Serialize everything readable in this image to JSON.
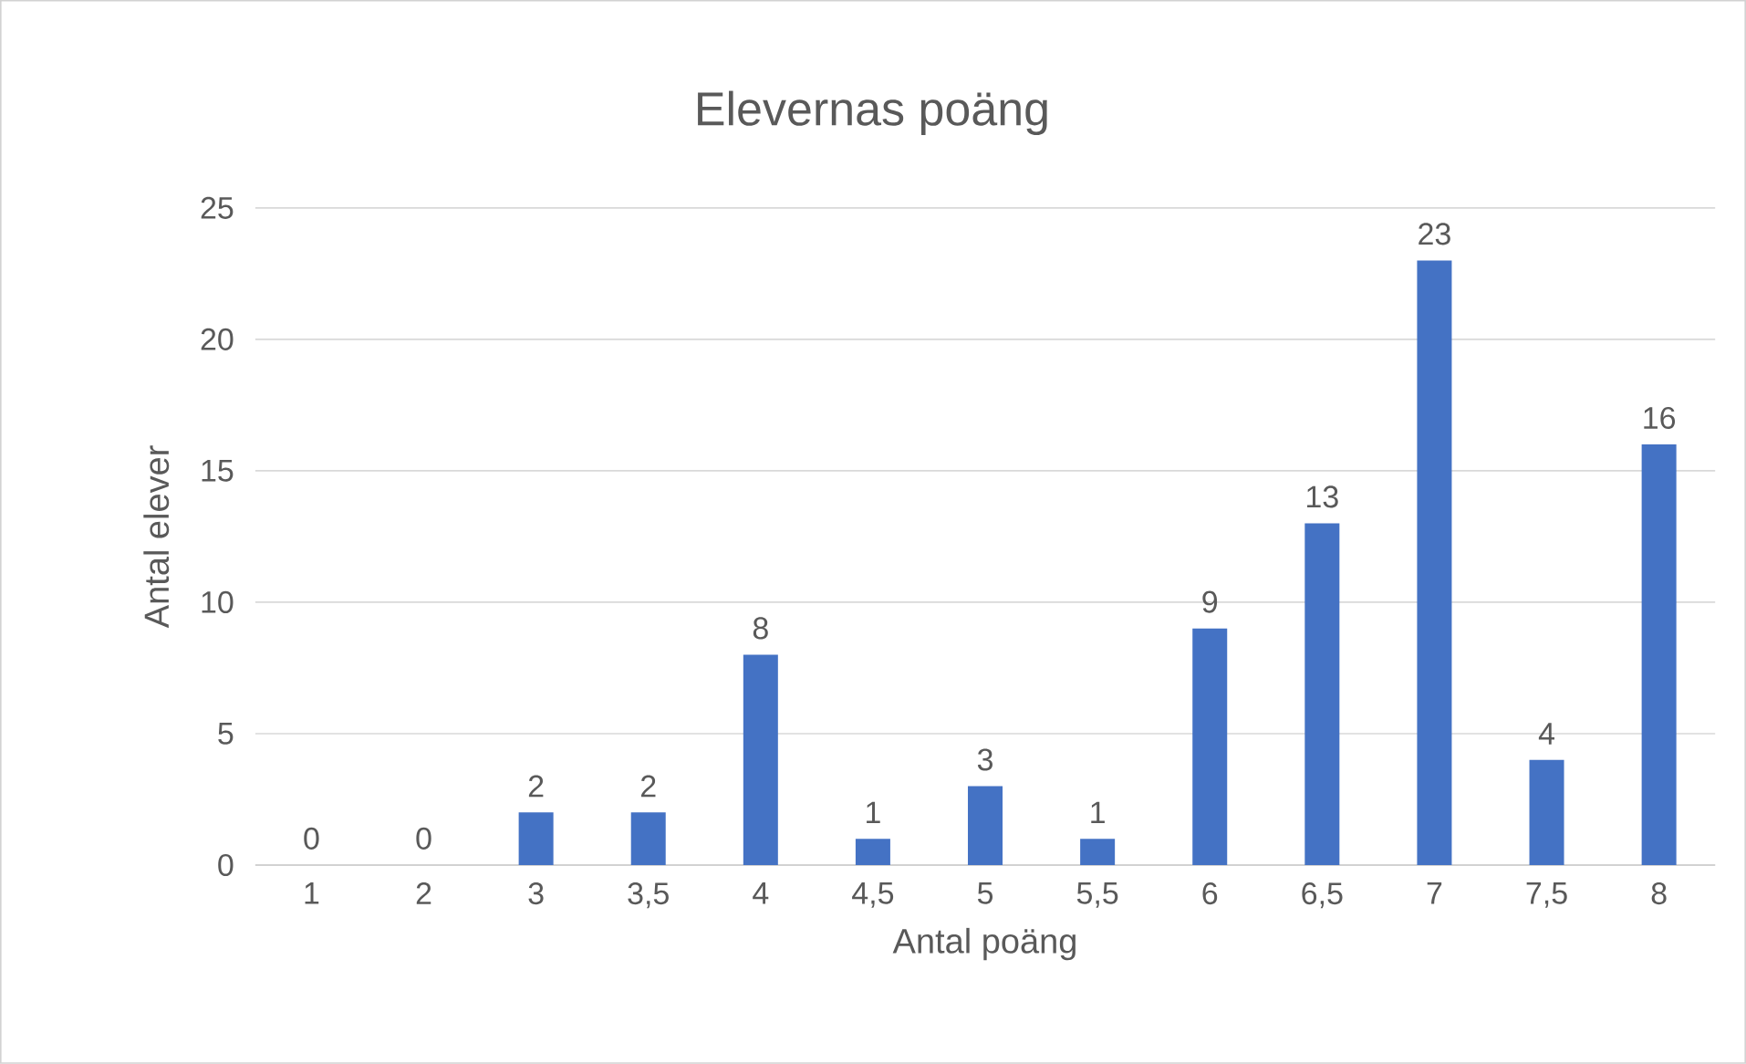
{
  "chart_data": {
    "type": "bar",
    "title": "Elevernas poäng",
    "xlabel": "Antal poäng",
    "ylabel": "Antal elever",
    "categories": [
      "1",
      "2",
      "3",
      "3,5",
      "4",
      "4,5",
      "5",
      "5,5",
      "6",
      "6,5",
      "7",
      "7,5",
      "8"
    ],
    "values": [
      0,
      0,
      2,
      2,
      8,
      1,
      3,
      1,
      9,
      13,
      23,
      4,
      16
    ],
    "color": "#4472c4",
    "ylim": [
      0,
      25
    ],
    "yticks": [
      0,
      5,
      10,
      15,
      20,
      25
    ],
    "grid": "y",
    "data_labels": true
  }
}
